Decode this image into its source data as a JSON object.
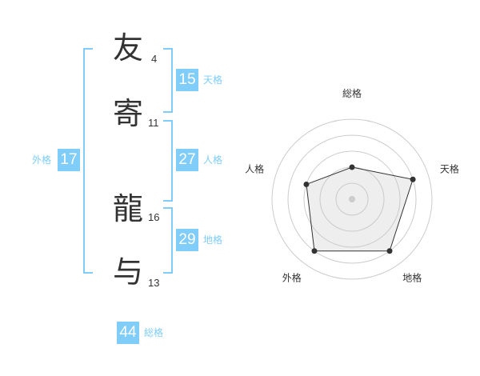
{
  "name": [
    {
      "char": "友",
      "strokes": "4"
    },
    {
      "char": "寄",
      "strokes": "11"
    },
    {
      "char": "龍",
      "strokes": "16"
    },
    {
      "char": "与",
      "strokes": "13"
    }
  ],
  "kaku": {
    "tenkaku": {
      "label": "天格",
      "value": "15"
    },
    "jinkaku": {
      "label": "人格",
      "value": "27"
    },
    "chikaku": {
      "label": "地格",
      "value": "29"
    },
    "gaikaku": {
      "label": "外格",
      "value": "17"
    },
    "soukaku": {
      "label": "総格",
      "value": "44"
    }
  },
  "colors": {
    "accent": "#7fcdf8",
    "text": "#333333",
    "radar_fill": "#f0f0f0"
  },
  "chart_data": {
    "type": "radar",
    "axes": [
      "総格",
      "天格",
      "地格",
      "外格",
      "人格"
    ],
    "values": [
      2,
      4,
      4,
      4,
      3
    ],
    "range": [
      0,
      5
    ],
    "rings": 5
  }
}
